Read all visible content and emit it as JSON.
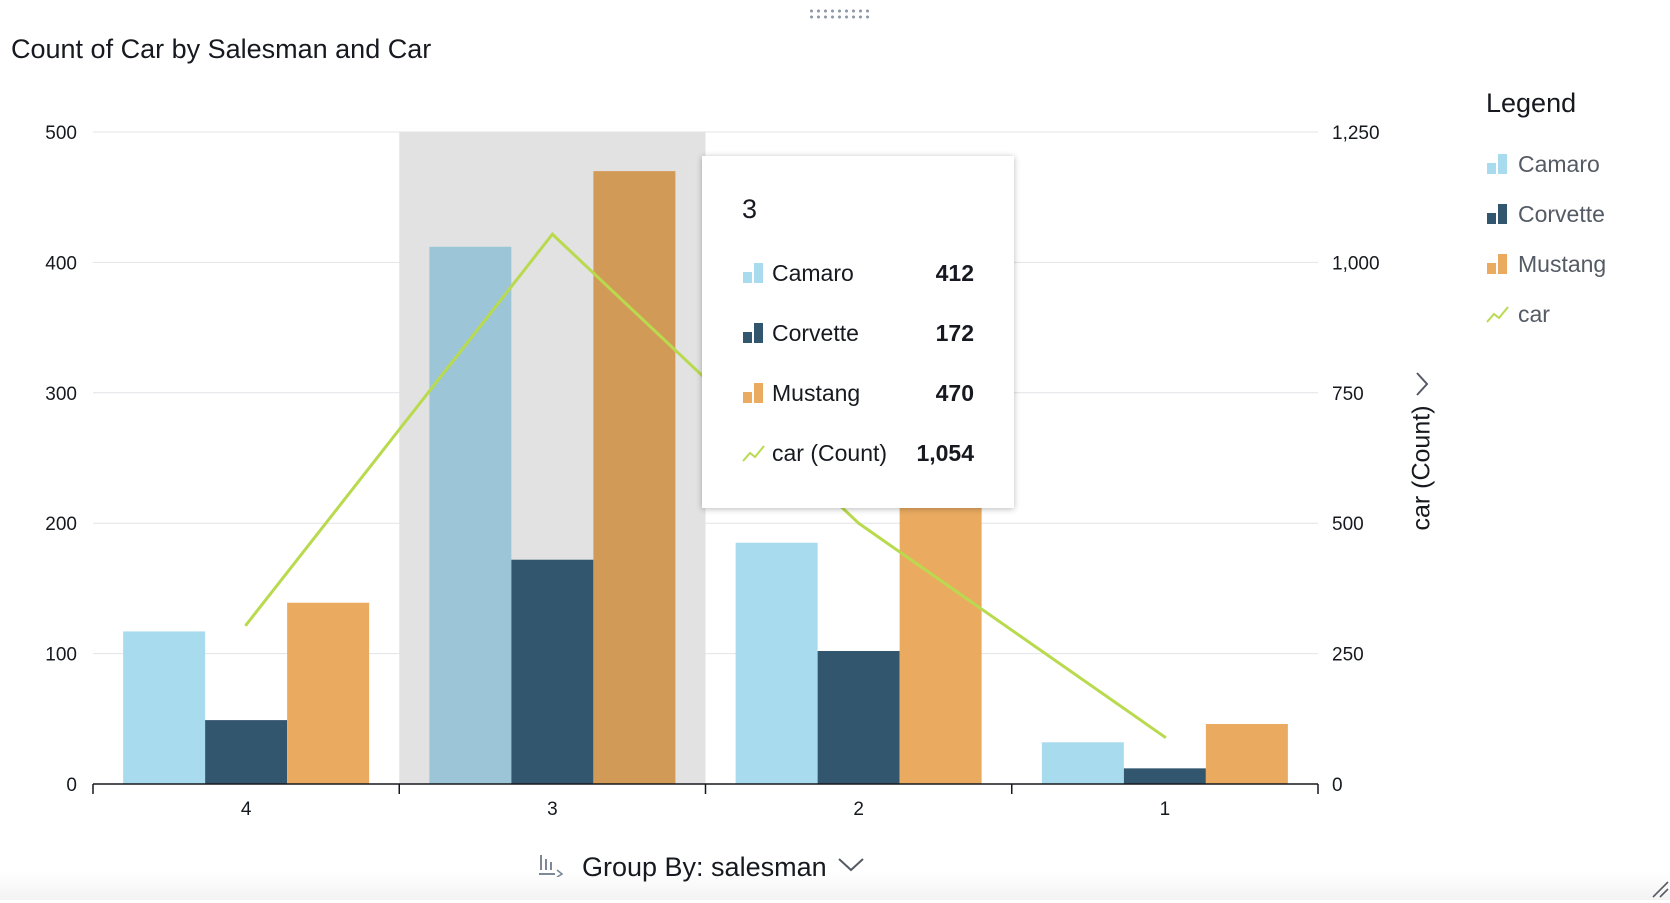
{
  "title": "Count of Car by Salesman and Car",
  "legend": {
    "title": "Legend",
    "items": [
      {
        "label": "Camaro",
        "color": "#a9dbef",
        "kind": "bar"
      },
      {
        "label": "Corvette",
        "color": "#33566f",
        "kind": "bar"
      },
      {
        "label": "Mustang",
        "color": "#eaab61",
        "kind": "bar"
      },
      {
        "label": "car",
        "color": "#b9da4e",
        "kind": "line"
      }
    ]
  },
  "tooltip": {
    "title": "3",
    "rows": [
      {
        "label": "Camaro",
        "value": "412",
        "color": "#a9dbef",
        "kind": "bar"
      },
      {
        "label": "Corvette",
        "value": "172",
        "color": "#33566f",
        "kind": "bar"
      },
      {
        "label": "Mustang",
        "value": "470",
        "color": "#eaab61",
        "kind": "bar"
      },
      {
        "label": "car (Count)",
        "value": "1,054",
        "color": "#b9da4e",
        "kind": "line"
      }
    ]
  },
  "y2_axis_label": "car (Count)",
  "group_by": {
    "label": "Group By: salesman"
  },
  "chart_data": {
    "type": "bar",
    "title": "Count of Car by Salesman and Car",
    "xlabel": "",
    "categories": [
      "4",
      "3",
      "2",
      "1"
    ],
    "highlighted_category": "3",
    "series": [
      {
        "name": "Camaro",
        "values": [
          117,
          412,
          185,
          32
        ],
        "color": "#a9dbef",
        "axis": "left"
      },
      {
        "name": "Corvette",
        "values": [
          49,
          172,
          102,
          12
        ],
        "color": "#33566f",
        "axis": "left"
      },
      {
        "name": "Mustang",
        "values": [
          139,
          470,
          213,
          46
        ],
        "color": "#eaab61",
        "axis": "left"
      },
      {
        "name": "car",
        "type": "line",
        "values": [
          305,
          1054,
          500,
          90
        ],
        "color": "#b9da4e",
        "axis": "right"
      }
    ],
    "ylim": [
      0,
      500
    ],
    "yticks": [
      "0",
      "100",
      "200",
      "300",
      "400",
      "500"
    ],
    "y2label": "car (Count)",
    "y2lim": [
      0,
      1250
    ],
    "y2ticks": [
      "0",
      "250",
      "500",
      "750",
      "1,000",
      "1,250"
    ],
    "grid": true,
    "legend_position": "right"
  }
}
